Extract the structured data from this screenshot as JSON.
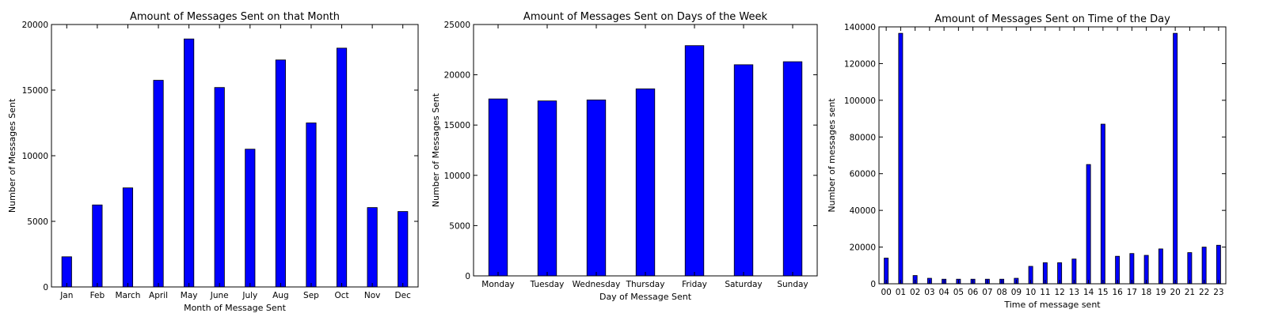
{
  "chart_data": [
    {
      "type": "bar",
      "title": "Amount of Messages Sent on that Month",
      "xlabel": "Month of Message Sent",
      "ylabel": "Number of Messages Sent",
      "categories": [
        "Jan",
        "Feb",
        "March",
        "April",
        "May",
        "June",
        "July",
        "Aug",
        "Sep",
        "Oct",
        "Nov",
        "Dec"
      ],
      "values": [
        2300,
        6250,
        7550,
        15750,
        18900,
        15200,
        10500,
        17300,
        12500,
        18200,
        6050,
        5750
      ],
      "ylim": [
        0,
        20000
      ],
      "yticks": [
        "0",
        "5000",
        "10000",
        "15000",
        "20000"
      ],
      "bar_color": "#0000ff",
      "grid": false
    },
    {
      "type": "bar",
      "title": "Amount of Messages Sent on Days of the Week",
      "xlabel": "Day of Message Sent",
      "ylabel": "Number of Messages Sent",
      "categories": [
        "Monday",
        "Tuesday",
        "Wednesday",
        "Thursday",
        "Friday",
        "Saturday",
        "Sunday"
      ],
      "values": [
        17600,
        17400,
        17500,
        18600,
        22900,
        21000,
        21300
      ],
      "ylim": [
        0,
        25000
      ],
      "yticks": [
        "0",
        "5000",
        "10000",
        "15000",
        "20000",
        "25000"
      ],
      "bar_color": "#0000ff",
      "grid": false
    },
    {
      "type": "bar",
      "title": "Amount of Messages Sent on Time of the Day",
      "xlabel": "Time of message sent",
      "ylabel": "Number of messages sent",
      "categories": [
        "00",
        "01",
        "02",
        "03",
        "04",
        "05",
        "06",
        "07",
        "08",
        "09",
        "10",
        "11",
        "12",
        "13",
        "14",
        "15",
        "16",
        "17",
        "18",
        "19",
        "20",
        "21",
        "22",
        "23"
      ],
      "values": [
        14000,
        136500,
        4500,
        3000,
        2500,
        2500,
        2500,
        2500,
        2500,
        3000,
        9500,
        11500,
        11500,
        13500,
        65000,
        87000,
        15000,
        16500,
        15500,
        19000,
        136500,
        17000,
        20000,
        21000
      ],
      "ylim": [
        0,
        140000
      ],
      "yticks": [
        "0",
        "20000",
        "40000",
        "60000",
        "80000",
        "100000",
        "120000",
        "140000"
      ],
      "bar_color": "#0000ff",
      "grid": false
    }
  ]
}
